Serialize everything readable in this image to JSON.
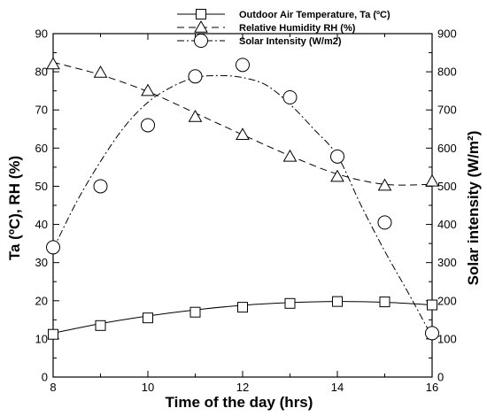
{
  "chart_data": {
    "type": "line",
    "xlabel": "Time of the day (hrs)",
    "ylabel_left": "Ta (ºC),  RH (%)",
    "ylabel_right": "Solar intensity (W/m²)",
    "xlim": [
      8,
      16
    ],
    "ylim_left": [
      0,
      90
    ],
    "ylim_right": [
      0,
      900
    ],
    "x_ticks": [
      8,
      10,
      12,
      14,
      16
    ],
    "y_ticks_left": [
      0,
      10,
      20,
      30,
      40,
      50,
      60,
      70,
      80,
      90
    ],
    "y_ticks_right": [
      0,
      100,
      200,
      300,
      400,
      500,
      600,
      700,
      800,
      900
    ],
    "legend_position": "top-center",
    "grid": false,
    "series": [
      {
        "name": "Outdoor Air Temperature, Ta (ºC)",
        "marker": "square",
        "line_style": "solid",
        "axis": "left",
        "x": [
          8,
          9,
          10,
          11,
          12,
          13,
          14,
          15,
          16
        ],
        "y": [
          11.2,
          13.5,
          15.5,
          17.0,
          18.3,
          19.3,
          19.8,
          19.7,
          18.9
        ],
        "fit": [
          [
            8,
            11.5
          ],
          [
            9,
            14.0
          ],
          [
            10,
            16.0
          ],
          [
            11,
            17.6
          ],
          [
            12,
            18.8
          ],
          [
            13,
            19.5
          ],
          [
            14,
            19.8
          ],
          [
            15,
            19.6
          ],
          [
            16,
            18.9
          ]
        ]
      },
      {
        "name": "Relative Humidity RH (%)",
        "marker": "triangle",
        "line_style": "dashed",
        "axis": "left",
        "x": [
          8,
          9,
          10,
          11,
          12,
          13,
          14,
          15,
          16
        ],
        "y": [
          82.0,
          79.8,
          75.0,
          68.2,
          63.5,
          57.8,
          52.5,
          50.2,
          51.3
        ],
        "fit": [
          [
            8,
            82.5
          ],
          [
            9,
            79.2
          ],
          [
            10,
            74.8
          ],
          [
            11,
            69.2
          ],
          [
            12,
            63.5
          ],
          [
            13,
            58.0
          ],
          [
            14,
            53.2
          ],
          [
            15,
            50.5
          ],
          [
            16,
            50.5
          ]
        ]
      },
      {
        "name": "Solar Intensity (W/m2)",
        "marker": "circle",
        "line_style": "dash-dot",
        "axis": "right",
        "x": [
          8,
          9,
          10,
          11,
          12,
          13,
          14,
          15,
          16
        ],
        "y": [
          340,
          500,
          660,
          788,
          818,
          733,
          578,
          405,
          115
        ],
        "fit": [
          [
            8,
            335
          ],
          [
            8.5,
            460
          ],
          [
            9,
            565
          ],
          [
            9.5,
            655
          ],
          [
            10,
            720
          ],
          [
            10.5,
            760
          ],
          [
            11,
            785
          ],
          [
            11.5,
            790
          ],
          [
            12,
            785
          ],
          [
            12.5,
            765
          ],
          [
            13,
            715
          ],
          [
            13.5,
            650
          ],
          [
            14,
            580
          ],
          [
            14.5,
            450
          ],
          [
            15,
            330
          ],
          [
            15.5,
            220
          ],
          [
            16,
            105
          ]
        ]
      }
    ]
  }
}
